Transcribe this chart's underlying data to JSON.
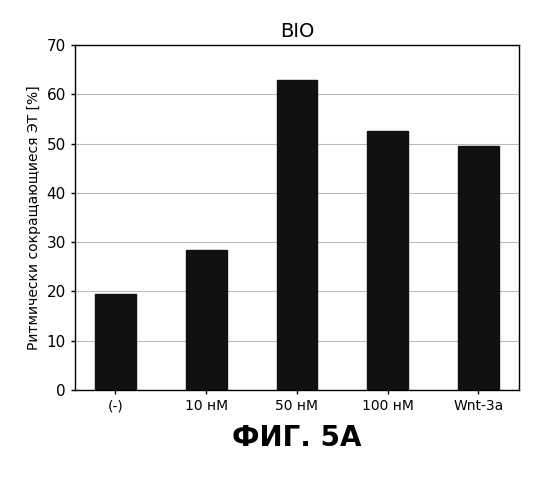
{
  "title": "BIO",
  "categories": [
    "(-)",
    "10 нМ",
    "50 нМ",
    "100 нМ",
    "Wnt-3a"
  ],
  "values": [
    19.5,
    28.5,
    63.0,
    52.5,
    49.5
  ],
  "bar_color": "#111111",
  "ylabel": "Ритмически сокращающиеся ЭТ [%]",
  "xlabel": "ФИГ. 5А",
  "ylim": [
    0,
    70
  ],
  "yticks": [
    0,
    10,
    20,
    30,
    40,
    50,
    60,
    70
  ],
  "title_fontsize": 14,
  "ylabel_fontsize": 10,
  "xlabel_fontsize": 20,
  "tick_fontsize": 11,
  "xtick_fontsize": 10,
  "bar_width": 0.45,
  "background_color": "#ffffff"
}
